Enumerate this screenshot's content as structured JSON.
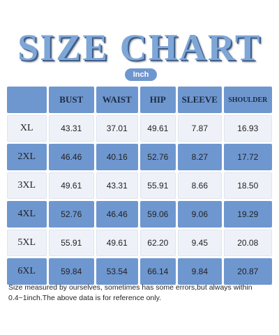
{
  "title": "SIZE CHART",
  "unit": "Inch",
  "table": {
    "headers": [
      "",
      "BUST",
      "WAIST",
      "HIP",
      "SLEEVE",
      "SHOULDER"
    ],
    "rows": [
      {
        "size": "XL",
        "bust": "43.31",
        "waist": "37.01",
        "hip": "49.61",
        "sleeve": "7.87",
        "shoulder": "16.93"
      },
      {
        "size": "2XL",
        "bust": "46.46",
        "waist": "40.16",
        "hip": "52.76",
        "sleeve": "8.27",
        "shoulder": "17.72"
      },
      {
        "size": "3XL",
        "bust": "49.61",
        "waist": "43.31",
        "hip": "55.91",
        "sleeve": "8.66",
        "shoulder": "18.50"
      },
      {
        "size": "4XL",
        "bust": "52.76",
        "waist": "46.46",
        "hip": "59.06",
        "sleeve": "9.06",
        "shoulder": "19.29"
      },
      {
        "size": "5XL",
        "bust": "55.91",
        "waist": "49.61",
        "hip": "62.20",
        "sleeve": "9.45",
        "shoulder": "20.08"
      },
      {
        "size": "6XL",
        "bust": "59.84",
        "waist": "53.54",
        "hip": "66.14",
        "sleeve": "9.84",
        "shoulder": "20.87"
      }
    ]
  },
  "note": "Size measured by ourselves, sometimes has some errors,but always within 0.4~1inch.The above data is for reference only.",
  "colors": {
    "accent": "#6f97cf",
    "title": "#7ea6d6",
    "light_row": "#eef1f8"
  }
}
